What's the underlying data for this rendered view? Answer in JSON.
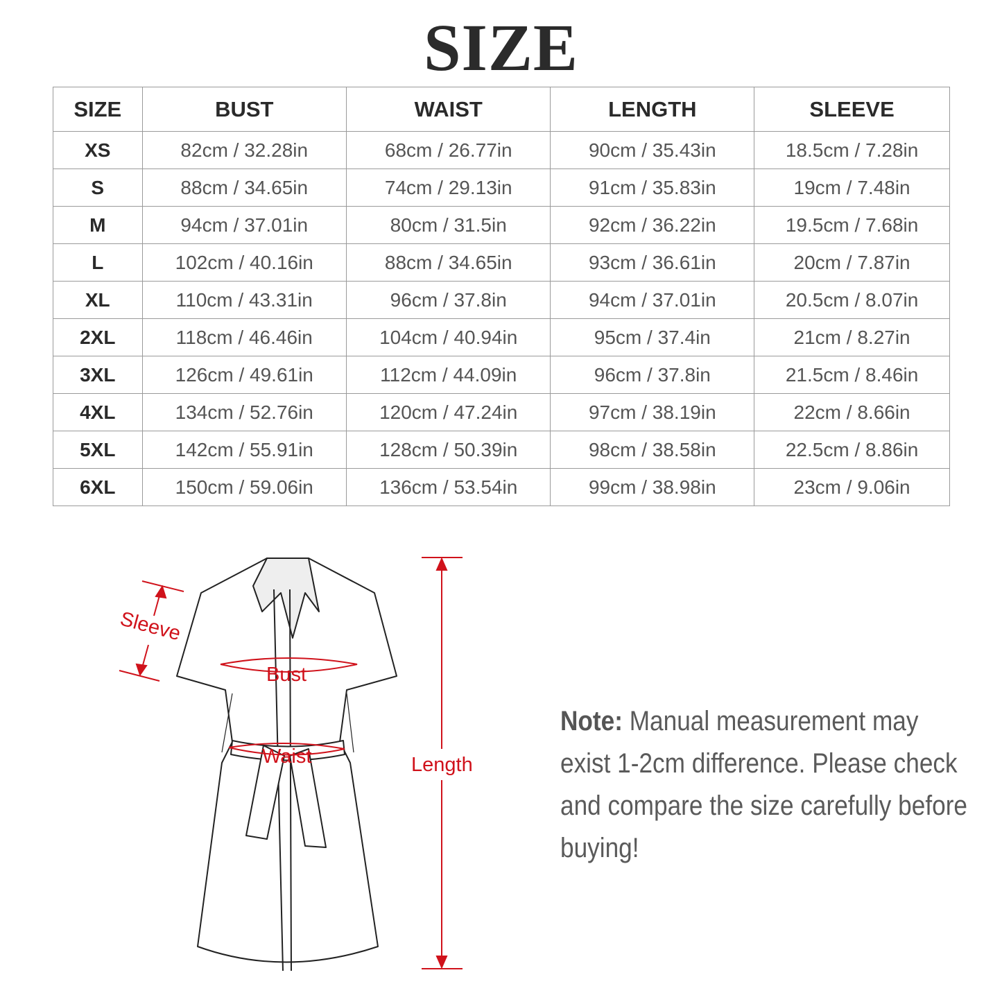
{
  "title": "SIZE",
  "table": {
    "headers": [
      "SIZE",
      "BUST",
      "WAIST",
      "LENGTH",
      "SLEEVE"
    ],
    "rows": [
      [
        "XS",
        "82cm / 32.28in",
        "68cm / 26.77in",
        "90cm / 35.43in",
        "18.5cm / 7.28in"
      ],
      [
        "S",
        "88cm / 34.65in",
        "74cm / 29.13in",
        "91cm / 35.83in",
        "19cm / 7.48in"
      ],
      [
        "M",
        "94cm / 37.01in",
        "80cm / 31.5in",
        "92cm / 36.22in",
        "19.5cm / 7.68in"
      ],
      [
        "L",
        "102cm / 40.16in",
        "88cm / 34.65in",
        "93cm / 36.61in",
        "20cm / 7.87in"
      ],
      [
        "XL",
        "110cm / 43.31in",
        "96cm / 37.8in",
        "94cm / 37.01in",
        "20.5cm / 8.07in"
      ],
      [
        "2XL",
        "118cm / 46.46in",
        "104cm / 40.94in",
        "95cm / 37.4in",
        "21cm / 8.27in"
      ],
      [
        "3XL",
        "126cm / 49.61in",
        "112cm / 44.09in",
        "96cm / 37.8in",
        "21.5cm / 8.46in"
      ],
      [
        "4XL",
        "134cm / 52.76in",
        "120cm / 47.24in",
        "97cm / 38.19in",
        "22cm / 8.66in"
      ],
      [
        "5XL",
        "142cm / 55.91in",
        "128cm / 50.39in",
        "98cm / 38.58in",
        "22.5cm / 8.86in"
      ],
      [
        "6XL",
        "150cm / 59.06in",
        "136cm / 53.54in",
        "99cm / 38.98in",
        "23cm / 9.06in"
      ]
    ]
  },
  "diagram": {
    "labels": {
      "sleeve": "Sleeve",
      "bust": "Bust",
      "waist": "Waist",
      "length": "Length"
    },
    "accent_color": "#d0121b"
  },
  "note": {
    "prefix": "Note:",
    "text": " Manual measurement may exist 1-2cm difference. Please check and compare the size carefully before buying!"
  }
}
